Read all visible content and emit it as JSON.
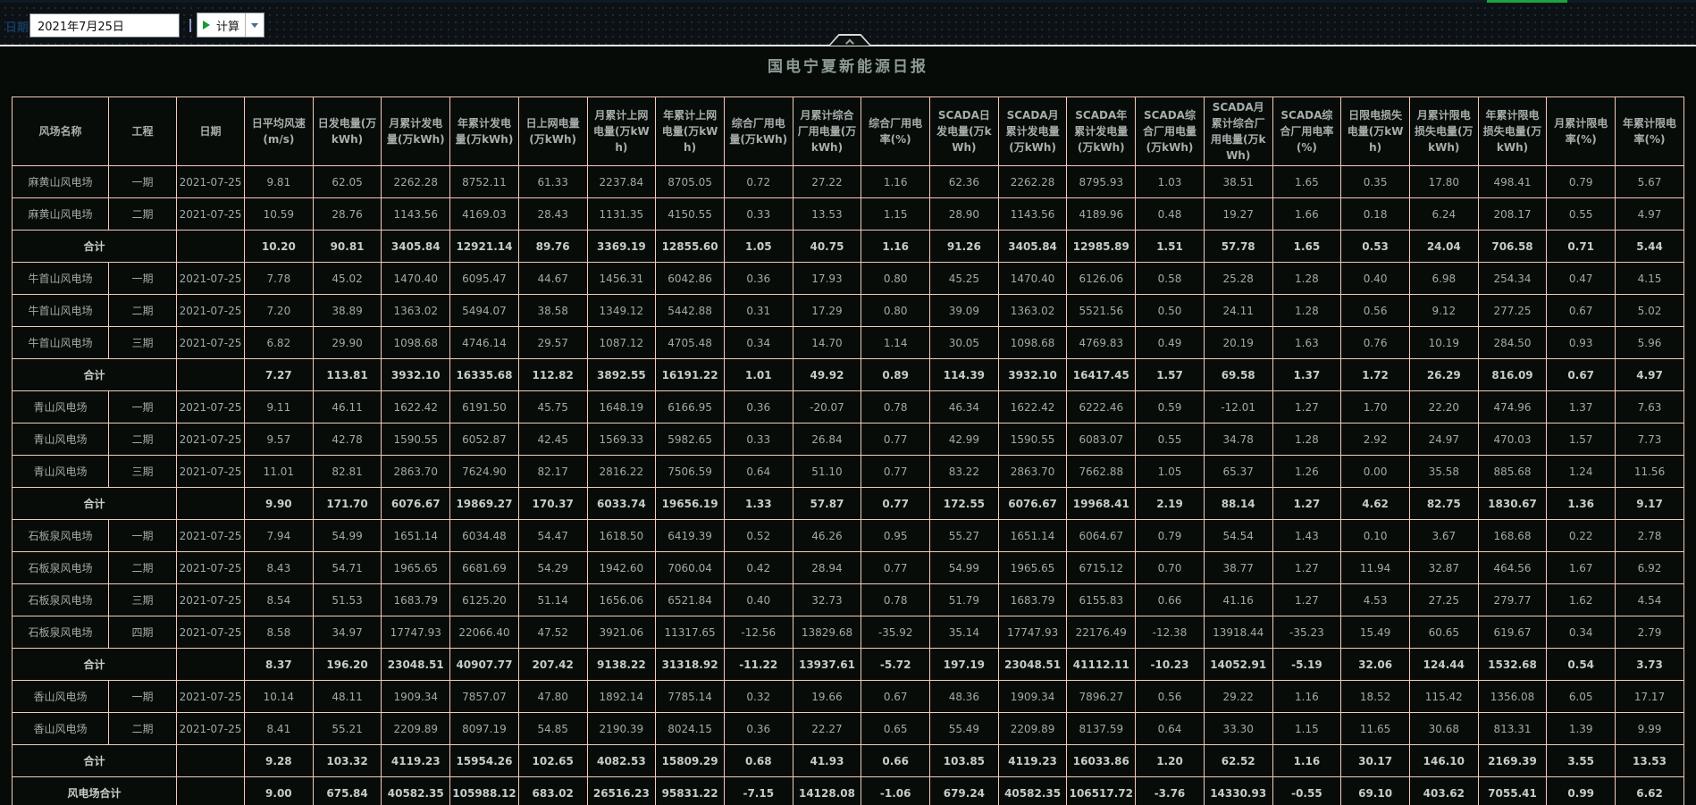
{
  "toolbar": {
    "date_label": "日期",
    "date_value": "2021年7月25日",
    "calc_button_label": "计算"
  },
  "page": {
    "title": "国电宁夏新能源日报"
  },
  "colors": {
    "progress_green": "#1ca53d",
    "table_border": "#f2cabd",
    "toolbar_bg": "#0b1115",
    "page_bg": "#060b08",
    "divider_white": "#e9edec",
    "text_gray": "#a3a9a6",
    "bold_text_gray": "#c7ccc9"
  },
  "table": {
    "columns": [
      "风场名称",
      "工程",
      "日期",
      "日平均风速(m/s)",
      "日发电量(万kWh)",
      "月累计发电量(万kWh)",
      "年累计发电量(万kWh)",
      "日上网电量(万kWh)",
      "月累计上网电量(万kWh)",
      "年累计上网电量(万kWh)",
      "综合厂用电量(万kWh)",
      "月累计综合厂用电量(万kWh)",
      "综合厂用电率(%)",
      "SCADA日发电量(万kWh)",
      "SCADA月累计发电量(万kWh)",
      "SCADA年累计发电量(万kWh)",
      "SCADA综合厂用电量(万kWh)",
      "SCADA月累计综合厂用电量(万kWh)",
      "SCADA综合厂用电率(%)",
      "日限电损失电量(万kWh)",
      "月累计限电损失电量(万kWh)",
      "年累计限电损失电量(万kWh)",
      "月累计限电率(%)",
      "年累计限电率(%)"
    ],
    "rows": [
      {
        "type": "data",
        "farm": "麻黄山风电场",
        "phase": "一期",
        "date": "2021-07-25",
        "values": [
          "9.81",
          "62.05",
          "2262.28",
          "8752.11",
          "61.33",
          "2237.84",
          "8705.05",
          "0.72",
          "27.22",
          "1.16",
          "62.36",
          "2262.28",
          "8795.93",
          "1.03",
          "38.51",
          "1.65",
          "0.35",
          "17.80",
          "498.41",
          "0.79",
          "5.67"
        ]
      },
      {
        "type": "data",
        "farm": "麻黄山风电场",
        "phase": "二期",
        "date": "2021-07-25",
        "values": [
          "10.59",
          "28.76",
          "1143.56",
          "4169.03",
          "28.43",
          "1131.35",
          "4150.55",
          "0.33",
          "13.53",
          "1.15",
          "28.90",
          "1143.56",
          "4189.96",
          "0.48",
          "19.27",
          "1.66",
          "0.18",
          "6.24",
          "208.17",
          "0.55",
          "4.97"
        ]
      },
      {
        "type": "subtotal",
        "label": "合计",
        "values": [
          "10.20",
          "90.81",
          "3405.84",
          "12921.14",
          "89.76",
          "3369.19",
          "12855.60",
          "1.05",
          "40.75",
          "1.16",
          "91.26",
          "3405.84",
          "12985.89",
          "1.51",
          "57.78",
          "1.65",
          "0.53",
          "24.04",
          "706.58",
          "0.71",
          "5.44"
        ]
      },
      {
        "type": "data",
        "farm": "牛首山风电场",
        "phase": "一期",
        "date": "2021-07-25",
        "values": [
          "7.78",
          "45.02",
          "1470.40",
          "6095.47",
          "44.67",
          "1456.31",
          "6042.86",
          "0.36",
          "17.93",
          "0.80",
          "45.25",
          "1470.40",
          "6126.06",
          "0.58",
          "25.28",
          "1.28",
          "0.40",
          "6.98",
          "254.34",
          "0.47",
          "4.15"
        ]
      },
      {
        "type": "data",
        "farm": "牛首山风电场",
        "phase": "二期",
        "date": "2021-07-25",
        "values": [
          "7.20",
          "38.89",
          "1363.02",
          "5494.07",
          "38.58",
          "1349.12",
          "5442.88",
          "0.31",
          "17.29",
          "0.80",
          "39.09",
          "1363.02",
          "5521.56",
          "0.50",
          "24.11",
          "1.28",
          "0.56",
          "9.12",
          "277.25",
          "0.67",
          "5.02"
        ]
      },
      {
        "type": "data",
        "farm": "牛首山风电场",
        "phase": "三期",
        "date": "2021-07-25",
        "values": [
          "6.82",
          "29.90",
          "1098.68",
          "4746.14",
          "29.57",
          "1087.12",
          "4705.48",
          "0.34",
          "14.70",
          "1.14",
          "30.05",
          "1098.68",
          "4769.83",
          "0.49",
          "20.19",
          "1.63",
          "0.76",
          "10.19",
          "284.50",
          "0.93",
          "5.96"
        ]
      },
      {
        "type": "subtotal",
        "label": "合计",
        "values": [
          "7.27",
          "113.81",
          "3932.10",
          "16335.68",
          "112.82",
          "3892.55",
          "16191.22",
          "1.01",
          "49.92",
          "0.89",
          "114.39",
          "3932.10",
          "16417.45",
          "1.57",
          "69.58",
          "1.37",
          "1.72",
          "26.29",
          "816.09",
          "0.67",
          "4.97"
        ]
      },
      {
        "type": "data",
        "farm": "青山风电场",
        "phase": "一期",
        "date": "2021-07-25",
        "values": [
          "9.11",
          "46.11",
          "1622.42",
          "6191.50",
          "45.75",
          "1648.19",
          "6166.95",
          "0.36",
          "-20.07",
          "0.78",
          "46.34",
          "1622.42",
          "6222.46",
          "0.59",
          "-12.01",
          "1.27",
          "1.70",
          "22.20",
          "474.96",
          "1.37",
          "7.63"
        ]
      },
      {
        "type": "data",
        "farm": "青山风电场",
        "phase": "二期",
        "date": "2021-07-25",
        "values": [
          "9.57",
          "42.78",
          "1590.55",
          "6052.87",
          "42.45",
          "1569.33",
          "5982.65",
          "0.33",
          "26.84",
          "0.77",
          "42.99",
          "1590.55",
          "6083.07",
          "0.55",
          "34.78",
          "1.28",
          "2.92",
          "24.97",
          "470.03",
          "1.57",
          "7.73"
        ]
      },
      {
        "type": "data",
        "farm": "青山风电场",
        "phase": "三期",
        "date": "2021-07-25",
        "values": [
          "11.01",
          "82.81",
          "2863.70",
          "7624.90",
          "82.17",
          "2816.22",
          "7506.59",
          "0.64",
          "51.10",
          "0.77",
          "83.22",
          "2863.70",
          "7662.88",
          "1.05",
          "65.37",
          "1.26",
          "0.00",
          "35.58",
          "885.68",
          "1.24",
          "11.56"
        ]
      },
      {
        "type": "subtotal",
        "label": "合计",
        "values": [
          "9.90",
          "171.70",
          "6076.67",
          "19869.27",
          "170.37",
          "6033.74",
          "19656.19",
          "1.33",
          "57.87",
          "0.77",
          "172.55",
          "6076.67",
          "19968.41",
          "2.19",
          "88.14",
          "1.27",
          "4.62",
          "82.75",
          "1830.67",
          "1.36",
          "9.17"
        ]
      },
      {
        "type": "data",
        "farm": "石板泉风电场",
        "phase": "一期",
        "date": "2021-07-25",
        "values": [
          "7.94",
          "54.99",
          "1651.14",
          "6034.48",
          "54.47",
          "1618.50",
          "6419.39",
          "0.52",
          "46.26",
          "0.95",
          "55.27",
          "1651.14",
          "6064.67",
          "0.79",
          "54.54",
          "1.43",
          "0.10",
          "3.67",
          "168.68",
          "0.22",
          "2.78"
        ]
      },
      {
        "type": "data",
        "farm": "石板泉风电场",
        "phase": "二期",
        "date": "2021-07-25",
        "values": [
          "8.43",
          "54.71",
          "1965.65",
          "6681.69",
          "54.29",
          "1942.60",
          "7060.04",
          "0.42",
          "28.94",
          "0.77",
          "54.99",
          "1965.65",
          "6715.12",
          "0.70",
          "38.77",
          "1.27",
          "11.94",
          "32.87",
          "464.56",
          "1.67",
          "6.92"
        ]
      },
      {
        "type": "data",
        "farm": "石板泉风电场",
        "phase": "三期",
        "date": "2021-07-25",
        "values": [
          "8.54",
          "51.53",
          "1683.79",
          "6125.20",
          "51.14",
          "1656.06",
          "6521.84",
          "0.40",
          "32.73",
          "0.78",
          "51.79",
          "1683.79",
          "6155.83",
          "0.66",
          "41.16",
          "1.27",
          "4.53",
          "27.25",
          "279.77",
          "1.62",
          "4.54"
        ]
      },
      {
        "type": "data",
        "farm": "石板泉风电场",
        "phase": "四期",
        "date": "2021-07-25",
        "values": [
          "8.58",
          "34.97",
          "17747.93",
          "22066.40",
          "47.52",
          "3921.06",
          "11317.65",
          "-12.56",
          "13829.68",
          "-35.92",
          "35.14",
          "17747.93",
          "22176.49",
          "-12.38",
          "13918.44",
          "-35.23",
          "15.49",
          "60.65",
          "619.67",
          "0.34",
          "2.79"
        ]
      },
      {
        "type": "subtotal",
        "label": "合计",
        "values": [
          "8.37",
          "196.20",
          "23048.51",
          "40907.77",
          "207.42",
          "9138.22",
          "31318.92",
          "-11.22",
          "13937.61",
          "-5.72",
          "197.19",
          "23048.51",
          "41112.11",
          "-10.23",
          "14052.91",
          "-5.19",
          "32.06",
          "124.44",
          "1532.68",
          "0.54",
          "3.73"
        ]
      },
      {
        "type": "data",
        "farm": "香山风电场",
        "phase": "一期",
        "date": "2021-07-25",
        "values": [
          "10.14",
          "48.11",
          "1909.34",
          "7857.07",
          "47.80",
          "1892.14",
          "7785.14",
          "0.32",
          "19.66",
          "0.67",
          "48.36",
          "1909.34",
          "7896.27",
          "0.56",
          "29.22",
          "1.16",
          "18.52",
          "115.42",
          "1356.08",
          "6.05",
          "17.17"
        ]
      },
      {
        "type": "data",
        "farm": "香山风电场",
        "phase": "二期",
        "date": "2021-07-25",
        "values": [
          "8.41",
          "55.21",
          "2209.89",
          "8097.19",
          "54.85",
          "2190.39",
          "8024.15",
          "0.36",
          "22.27",
          "0.65",
          "55.49",
          "2209.89",
          "8137.59",
          "0.64",
          "33.30",
          "1.15",
          "11.65",
          "30.68",
          "813.31",
          "1.39",
          "9.99"
        ]
      },
      {
        "type": "subtotal",
        "label": "合计",
        "values": [
          "9.28",
          "103.32",
          "4119.23",
          "15954.26",
          "102.65",
          "4082.53",
          "15809.29",
          "0.68",
          "41.93",
          "0.66",
          "103.85",
          "4119.23",
          "16033.86",
          "1.20",
          "62.52",
          "1.16",
          "30.17",
          "146.10",
          "2169.39",
          "3.55",
          "13.53"
        ]
      },
      {
        "type": "grand_total",
        "label": "风电场合计",
        "values": [
          "9.00",
          "675.84",
          "40582.35",
          "105988.12",
          "683.02",
          "26516.23",
          "95831.22",
          "-7.15",
          "14128.08",
          "-1.06",
          "679.24",
          "40582.35",
          "106517.72",
          "-3.76",
          "14330.93",
          "-0.55",
          "69.10",
          "403.62",
          "7055.41",
          "0.99",
          "6.62"
        ]
      }
    ]
  }
}
